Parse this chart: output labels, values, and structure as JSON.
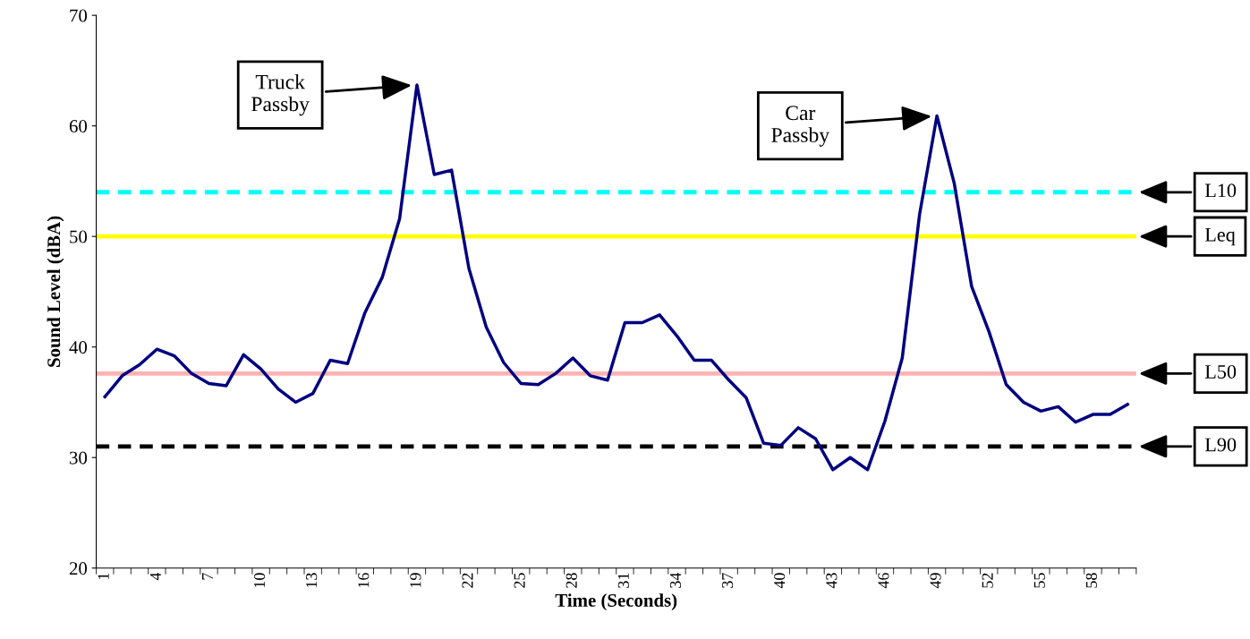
{
  "chart_data": {
    "type": "line",
    "xlabel": "Time (Seconds)",
    "ylabel": "Sound Level (dBA)",
    "categories": [
      "1",
      null,
      null,
      "4",
      null,
      null,
      "7",
      null,
      null,
      "10",
      null,
      null,
      "13",
      null,
      null,
      "16",
      null,
      null,
      "19",
      null,
      null,
      "22",
      null,
      null,
      "25",
      null,
      null,
      "28",
      null,
      null,
      "31",
      null,
      null,
      "34",
      null,
      null,
      "37",
      null,
      null,
      "40",
      null,
      null,
      "43",
      null,
      null,
      "46",
      null,
      null,
      "49",
      null,
      null,
      "52",
      null,
      null,
      "55",
      null,
      null,
      "58",
      null,
      null
    ],
    "series": [
      {
        "color": "#000080",
        "values": [
          35.5,
          37.4,
          38.4,
          39.8,
          39.2,
          37.6,
          36.7,
          36.5,
          39.3,
          38.0,
          36.2,
          35.0,
          35.8,
          38.8,
          38.5,
          43.1,
          46.3,
          51.6,
          63.7,
          55.6,
          56.0,
          47.1,
          41.8,
          38.6,
          36.7,
          36.6,
          37.6,
          39.0,
          37.4,
          37.0,
          42.2,
          42.2,
          42.9,
          41.0,
          38.8,
          38.8,
          37.0,
          35.4,
          31.3,
          31.1,
          32.7,
          31.7,
          28.9,
          30.0,
          28.9,
          33.3,
          39.0,
          52.0,
          60.9,
          54.8,
          45.5,
          41.4,
          36.6,
          35.0,
          34.2,
          34.6,
          33.2,
          33.9,
          33.9,
          34.8
        ]
      }
    ],
    "ylim": [
      20,
      70
    ],
    "yticks": [
      20,
      30,
      40,
      50,
      60,
      70
    ],
    "grid": false,
    "legend": false,
    "marker": "none",
    "line_style": "solid",
    "ref_lines": [
      {
        "axis": "y",
        "value": 54,
        "label": "L10",
        "color": "#00ffff",
        "line_style": "dashed"
      },
      {
        "axis": "y",
        "value": 50,
        "label": "Leq",
        "color": "#ffff00",
        "line_style": "solid"
      },
      {
        "axis": "y",
        "value": 37.6,
        "label": "L50",
        "color": "#ffb3b3",
        "line_style": "solid"
      },
      {
        "axis": "y",
        "value": 31,
        "label": "L90",
        "color": "#000000",
        "line_style": "dashed"
      }
    ],
    "annotations": [
      {
        "text": "Truck\nPassby",
        "x": "19",
        "y": 63.7
      },
      {
        "text": "Car\nPassby",
        "x": "49",
        "y": 60.9
      }
    ]
  }
}
